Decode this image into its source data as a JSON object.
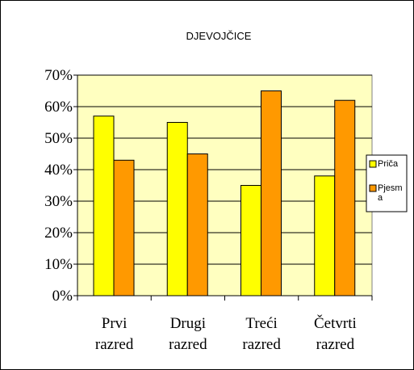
{
  "chart_data": {
    "type": "bar",
    "title": "DJEVOJČICE",
    "categories": [
      "Prvi razred",
      "Drugi razred",
      "Treći razred",
      "Četvrti razred"
    ],
    "series": [
      {
        "name": "Priča",
        "color": "#ffff00",
        "values": [
          57,
          55,
          35,
          38
        ]
      },
      {
        "name": "Pjesma",
        "color": "#ff9900",
        "values": [
          43,
          45,
          65,
          62
        ]
      }
    ],
    "ylim": [
      0,
      70
    ],
    "yticks": [
      {
        "value": 0,
        "label": "0%"
      },
      {
        "value": 10,
        "label": "10%"
      },
      {
        "value": 20,
        "label": "20%"
      },
      {
        "value": 30,
        "label": "30%"
      },
      {
        "value": 40,
        "label": "40%"
      },
      {
        "value": 50,
        "label": "50%"
      },
      {
        "value": 60,
        "label": "60%"
      },
      {
        "value": 70,
        "label": "70%"
      }
    ],
    "grid": true,
    "legend": "right",
    "plot_background": "#ffffc0"
  }
}
